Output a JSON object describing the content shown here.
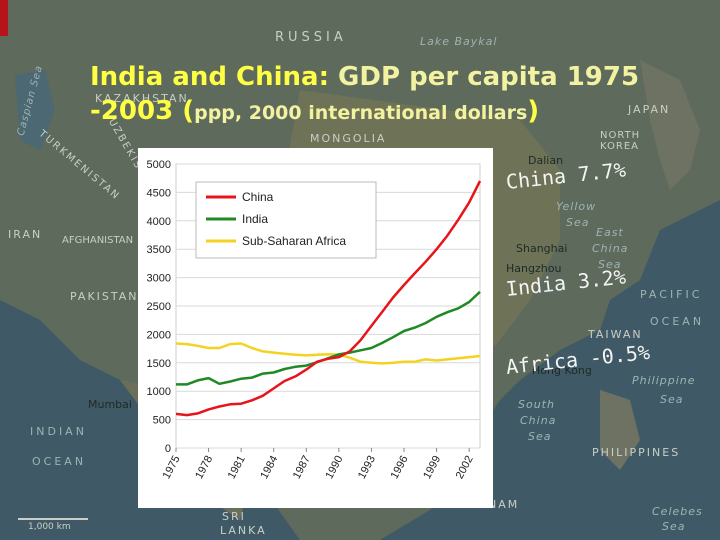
{
  "slide": {
    "title_prefix": "India and China:",
    "title_highlight": "GDP per capita 1975",
    "title_line2": "-2003",
    "title_paren_open": "(",
    "title_paren_text": "ppp, 2000 international dollars",
    "title_paren_close": ")"
  },
  "growth_labels": [
    {
      "text": "China 7.7%"
    },
    {
      "text": "India 3.2%"
    },
    {
      "text": "Africa -0.5%"
    }
  ],
  "map_labels": {
    "russia": "RUSSIA",
    "kazakhstan": "KAZAKHSTAN",
    "mongolia": "MONGOLIA",
    "japan": "JAPAN",
    "north_korea": "NORTH KOREA",
    "iran": "IRAN",
    "afghanistan": "AFGHANISTAN",
    "pakistan": "PAKISTAN",
    "turkmenistan": "TURKMENISTAN",
    "uzbekistan": "UZBEKISTAN",
    "caspian": "Caspian Sea",
    "lake_baykal": "Lake Baykal",
    "indian_ocean_1": "INDIAN",
    "indian_ocean_2": "OCEAN",
    "pacific_1": "PACIFIC",
    "pacific_2": "OCEAN",
    "taiwan": "TAIWAN",
    "philippine_sea_1": "Philippine",
    "philippine_sea_2": "Sea",
    "south_china_sea_1": "South",
    "south_china_sea_2": "China",
    "south_china_sea_3": "Sea",
    "philippines": "PHILIPPINES",
    "sri_lanka_1": "SRI",
    "sri_lanka_2": "LANKA",
    "celebes_1": "Celebes",
    "celebes_2": "Sea",
    "yellow_sea_1": "Yellow",
    "yellow_sea_2": "Sea",
    "east_china_sea_1": "East",
    "east_china_sea_2": "China",
    "east_china_sea_3": "Sea",
    "shanghai": "Shanghai",
    "hangzhou": "Hangzhou",
    "dalian": "Dalian",
    "hong_kong": "Hong Kong",
    "mumbai": "Mumbai",
    "nam": "NAM",
    "scale": "1,000 km"
  },
  "colors": {
    "title_yellow": "#ffff44",
    "china": "#e8141b",
    "india": "#1f8a23",
    "africa": "#f4d21f"
  },
  "chart_data": {
    "type": "line",
    "title": "",
    "xlabel": "",
    "ylabel": "",
    "x": [
      1975,
      1976,
      1977,
      1978,
      1979,
      1980,
      1981,
      1982,
      1983,
      1984,
      1985,
      1986,
      1987,
      1988,
      1989,
      1990,
      1991,
      1992,
      1993,
      1994,
      1995,
      1996,
      1997,
      1998,
      1999,
      2000,
      2001,
      2002,
      2003
    ],
    "x_tick_labels": [
      "1975",
      "1978",
      "1981",
      "1984",
      "1987",
      "1990",
      "1993",
      "1996",
      "1999",
      "2002"
    ],
    "y_tick_labels": [
      "0",
      "500",
      "1000",
      "1500",
      "2000",
      "2500",
      "3000",
      "3500",
      "4000",
      "4500",
      "5000"
    ],
    "ylim": [
      0,
      5000
    ],
    "grid": true,
    "legend_position": "top-left",
    "series": [
      {
        "name": "China",
        "color": "#e8141b",
        "values": [
          600,
          580,
          610,
          680,
          730,
          770,
          780,
          840,
          920,
          1050,
          1180,
          1260,
          1380,
          1520,
          1570,
          1600,
          1700,
          1900,
          2150,
          2400,
          2650,
          2870,
          3080,
          3280,
          3500,
          3740,
          4020,
          4320,
          4700
        ]
      },
      {
        "name": "India",
        "color": "#1f8a23",
        "values": [
          1120,
          1120,
          1190,
          1230,
          1130,
          1170,
          1220,
          1240,
          1310,
          1330,
          1390,
          1430,
          1450,
          1510,
          1580,
          1650,
          1680,
          1720,
          1760,
          1850,
          1950,
          2060,
          2120,
          2200,
          2310,
          2390,
          2460,
          2570,
          2750
        ]
      },
      {
        "name": "Sub-Saharan Africa",
        "color": "#f4d21f",
        "values": [
          1840,
          1830,
          1800,
          1760,
          1760,
          1830,
          1840,
          1760,
          1700,
          1680,
          1660,
          1640,
          1630,
          1640,
          1650,
          1640,
          1590,
          1520,
          1500,
          1490,
          1500,
          1520,
          1520,
          1560,
          1540,
          1560,
          1580,
          1600,
          1620
        ]
      }
    ]
  }
}
